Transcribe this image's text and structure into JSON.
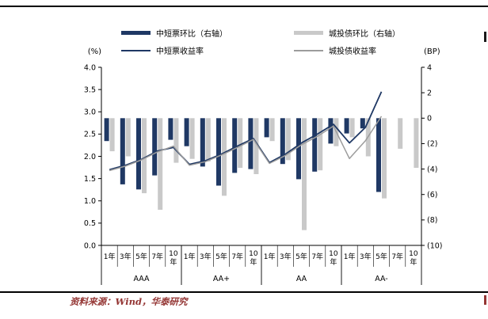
{
  "page": {
    "source_note": "资料来源：Wind，华泰研究"
  },
  "legend": {
    "items": [
      {
        "label": "中短票环比（右轴）",
        "type": "bar",
        "color": "#1F3864"
      },
      {
        "label": "城投债环比（右轴）",
        "type": "bar",
        "color": "#C9C9C9"
      },
      {
        "label": "中短票收益率",
        "type": "line",
        "color": "#1F3864"
      },
      {
        "label": "城投债收益率",
        "type": "line",
        "color": "#9C9C9C"
      }
    ]
  },
  "axes": {
    "left_unit": "(%)",
    "right_unit": "(BP)",
    "left_ticks": [
      "4.0",
      "3.5",
      "3.0",
      "2.5",
      "2.0",
      "1.5",
      "1.0",
      "0.5",
      "0.0"
    ],
    "right_ticks": [
      "4",
      "2",
      "0",
      "(2)",
      "(4)",
      "(6)",
      "(8)",
      "(10)"
    ],
    "left_range": [
      0,
      4
    ],
    "right_range": [
      -10,
      4
    ]
  },
  "chart_data": {
    "type": "bar+line",
    "title": "",
    "groups": [
      "AAA",
      "AA+",
      "AA",
      "AA-"
    ],
    "maturities": [
      "1年",
      "3年",
      "5年",
      "7年",
      "10年"
    ],
    "legend_position": "top",
    "grid": false,
    "left_axis": {
      "unit": "%",
      "range": [
        0,
        4
      ]
    },
    "right_axis": {
      "unit": "BP",
      "range": [
        -10,
        4
      ]
    },
    "series": [
      {
        "name": "中短票环比（右轴）",
        "type": "bar",
        "axis": "right",
        "unit": "BP",
        "color": "#1F3864",
        "values": [
          -1.8,
          -5.2,
          -5.6,
          -4.5,
          -1.7,
          -2.2,
          -3.8,
          -5.3,
          -4.3,
          -4.0,
          -1.5,
          -3.6,
          -4.8,
          -4.2,
          -2.0,
          -1.2,
          -0.8,
          -5.8,
          null,
          null
        ]
      },
      {
        "name": "城投债环比（右轴）",
        "type": "bar",
        "axis": "right",
        "unit": "BP",
        "color": "#C9C9C9",
        "values": [
          -2.6,
          -3.0,
          -5.9,
          -7.2,
          -3.5,
          -3.2,
          -3.4,
          -6.1,
          -3.9,
          -4.4,
          -1.8,
          -3.3,
          -8.8,
          -4.1,
          -2.2,
          -1.5,
          -3.0,
          -6.3,
          -2.4,
          -3.9
        ]
      },
      {
        "name": "中短票收益率",
        "type": "line",
        "axis": "left",
        "unit": "%",
        "color": "#1F3864",
        "values": [
          1.7,
          1.8,
          1.93,
          2.12,
          2.2,
          1.82,
          1.9,
          2.05,
          2.23,
          2.4,
          1.86,
          2.05,
          2.3,
          2.5,
          2.72,
          2.3,
          2.65,
          3.45,
          null,
          null
        ]
      },
      {
        "name": "城投债收益率",
        "type": "line",
        "axis": "left",
        "unit": "%",
        "color": "#9C9C9C",
        "values": [
          1.68,
          1.78,
          1.92,
          2.1,
          2.23,
          1.8,
          1.88,
          2.03,
          2.2,
          2.38,
          1.84,
          2.02,
          2.26,
          2.45,
          2.68,
          1.95,
          2.35,
          2.9,
          null,
          null
        ]
      }
    ]
  }
}
